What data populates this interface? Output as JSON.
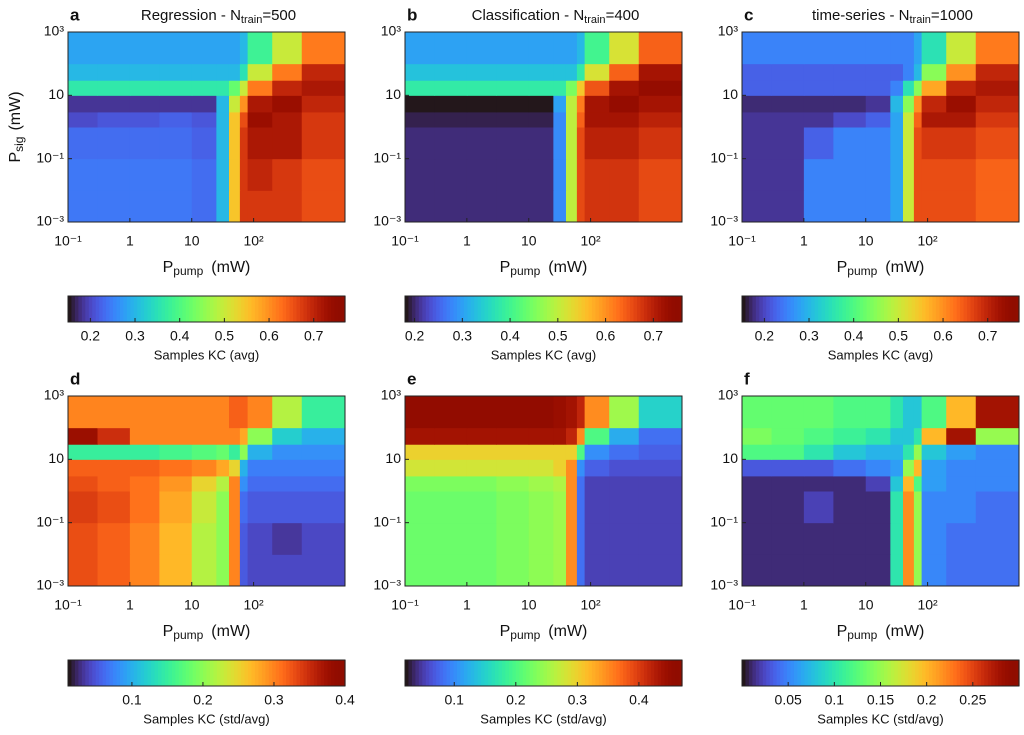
{
  "chart_data": [
    {
      "type": "heatmap",
      "letter": "a",
      "title": "Regression  -  N",
      "title_sub": "train",
      "title_end": "=500",
      "xlabel": "P",
      "xlabel_sub": "pump",
      "xlabel_unit": "(mW)",
      "ylabel": "P",
      "ylabel_sub": "sig",
      "ylabel_unit": "(mW)",
      "log_x": true,
      "log_y": true,
      "xlim": [
        0.1,
        3000
      ],
      "ylim": [
        0.001,
        1000
      ],
      "xticks": [
        {
          "value": 0.1,
          "label": "10⁻¹"
        },
        1,
        10,
        {
          "value": 100,
          "label": "10²"
        }
      ],
      "yticks": [
        {
          "value": 0.001,
          "label": "10⁻³"
        },
        {
          "value": 0.1,
          "label": "10⁻¹"
        },
        10,
        {
          "value": 1000,
          "label": "10³"
        }
      ],
      "x_edges": [
        0.1,
        0.3,
        1,
        3,
        10,
        25,
        40,
        60,
        80,
        200,
        600,
        3000
      ],
      "y_edges": [
        0.001,
        0.01,
        0.1,
        1,
        3,
        10,
        30,
        100,
        1000
      ],
      "z": [
        [
          0.24,
          0.24,
          0.24,
          0.24,
          0.23,
          0.3,
          0.55,
          0.68,
          0.68,
          0.68,
          0.66
        ],
        [
          0.24,
          0.24,
          0.24,
          0.24,
          0.23,
          0.3,
          0.55,
          0.68,
          0.7,
          0.68,
          0.66
        ],
        [
          0.23,
          0.23,
          0.23,
          0.23,
          0.22,
          0.3,
          0.55,
          0.68,
          0.72,
          0.72,
          0.68
        ],
        [
          0.2,
          0.21,
          0.21,
          0.22,
          0.21,
          0.3,
          0.55,
          0.66,
          0.74,
          0.72,
          0.68
        ],
        [
          0.18,
          0.18,
          0.18,
          0.18,
          0.18,
          0.3,
          0.5,
          0.6,
          0.72,
          0.74,
          0.7
        ],
        [
          0.36,
          0.36,
          0.36,
          0.36,
          0.36,
          0.36,
          0.42,
          0.5,
          0.62,
          0.7,
          0.72
        ],
        [
          0.3,
          0.3,
          0.3,
          0.3,
          0.3,
          0.3,
          0.3,
          0.35,
          0.5,
          0.62,
          0.7
        ],
        [
          0.28,
          0.28,
          0.28,
          0.28,
          0.28,
          0.28,
          0.28,
          0.3,
          0.38,
          0.5,
          0.62
        ]
      ],
      "colormap": "turbo",
      "colorbar": {
        "label": "Samples KC (avg)",
        "lim": [
          0.15,
          0.77
        ],
        "ticks": [
          0.2,
          0.3,
          0.4,
          0.5,
          0.6,
          0.7
        ]
      }
    },
    {
      "type": "heatmap",
      "letter": "b",
      "title": "Classification  -  N",
      "title_sub": "train",
      "title_end": "=400",
      "xlabel": "P",
      "xlabel_sub": "pump",
      "xlabel_unit": "(mW)",
      "log_x": true,
      "log_y": true,
      "xlim": [
        0.1,
        3000
      ],
      "ylim": [
        0.001,
        1000
      ],
      "xticks": [
        {
          "value": 0.1,
          "label": "10⁻¹"
        },
        1,
        10,
        {
          "value": 100,
          "label": "10²"
        }
      ],
      "yticks": [
        {
          "value": 0.001,
          "label": "10⁻³"
        },
        {
          "value": 0.1,
          "label": "10⁻¹"
        },
        10,
        {
          "value": 1000,
          "label": "10³"
        }
      ],
      "x_edges": [
        0.1,
        0.3,
        1,
        3,
        10,
        25,
        40,
        60,
        80,
        200,
        600,
        3000
      ],
      "y_edges": [
        0.001,
        0.01,
        0.1,
        1,
        3,
        10,
        30,
        100,
        1000
      ],
      "z": [
        [
          0.2,
          0.2,
          0.2,
          0.2,
          0.2,
          0.28,
          0.5,
          0.66,
          0.68,
          0.68,
          0.66
        ],
        [
          0.2,
          0.2,
          0.2,
          0.2,
          0.2,
          0.28,
          0.5,
          0.66,
          0.68,
          0.68,
          0.66
        ],
        [
          0.2,
          0.2,
          0.2,
          0.2,
          0.2,
          0.28,
          0.5,
          0.66,
          0.7,
          0.7,
          0.68
        ],
        [
          0.19,
          0.19,
          0.19,
          0.19,
          0.19,
          0.28,
          0.5,
          0.64,
          0.72,
          0.72,
          0.7
        ],
        [
          0.18,
          0.18,
          0.18,
          0.18,
          0.18,
          0.3,
          0.5,
          0.62,
          0.72,
          0.74,
          0.72
        ],
        [
          0.38,
          0.38,
          0.38,
          0.38,
          0.38,
          0.38,
          0.45,
          0.55,
          0.65,
          0.72,
          0.74
        ],
        [
          0.33,
          0.33,
          0.33,
          0.33,
          0.33,
          0.33,
          0.33,
          0.38,
          0.52,
          0.64,
          0.72
        ],
        [
          0.3,
          0.3,
          0.3,
          0.3,
          0.3,
          0.3,
          0.3,
          0.32,
          0.4,
          0.52,
          0.64
        ]
      ],
      "colormap": "turbo",
      "colorbar": {
        "label": "Samples KC (avg)",
        "lim": [
          0.18,
          0.76
        ],
        "ticks": [
          0.2,
          0.3,
          0.4,
          0.5,
          0.6,
          0.7
        ]
      }
    },
    {
      "type": "heatmap",
      "letter": "c",
      "title": "time-series  -  N",
      "title_sub": "train",
      "title_end": "=1000",
      "xlabel": "P",
      "xlabel_sub": "pump",
      "xlabel_unit": "(mW)",
      "log_x": true,
      "log_y": true,
      "xlim": [
        0.1,
        3000
      ],
      "ylim": [
        0.001,
        1000
      ],
      "xticks": [
        {
          "value": 0.1,
          "label": "10⁻¹"
        },
        1,
        10,
        {
          "value": 100,
          "label": "10²"
        }
      ],
      "yticks": [
        {
          "value": 0.001,
          "label": "10⁻³"
        },
        {
          "value": 0.1,
          "label": "10⁻¹"
        },
        10,
        {
          "value": 1000,
          "label": "10³"
        }
      ],
      "x_edges": [
        0.1,
        0.3,
        1,
        3,
        10,
        25,
        40,
        60,
        80,
        200,
        600,
        3000
      ],
      "y_edges": [
        0.001,
        0.01,
        0.1,
        1,
        3,
        10,
        30,
        100,
        1000
      ],
      "z": [
        [
          0.18,
          0.18,
          0.25,
          0.25,
          0.25,
          0.28,
          0.5,
          0.66,
          0.66,
          0.66,
          0.64
        ],
        [
          0.18,
          0.18,
          0.25,
          0.25,
          0.25,
          0.28,
          0.5,
          0.66,
          0.66,
          0.66,
          0.64
        ],
        [
          0.18,
          0.18,
          0.22,
          0.25,
          0.25,
          0.28,
          0.5,
          0.66,
          0.68,
          0.68,
          0.66
        ],
        [
          0.18,
          0.18,
          0.18,
          0.2,
          0.22,
          0.28,
          0.5,
          0.64,
          0.72,
          0.72,
          0.68
        ],
        [
          0.17,
          0.17,
          0.17,
          0.17,
          0.18,
          0.3,
          0.45,
          0.6,
          0.7,
          0.74,
          0.7
        ],
        [
          0.22,
          0.22,
          0.22,
          0.22,
          0.22,
          0.25,
          0.35,
          0.45,
          0.58,
          0.7,
          0.72
        ],
        [
          0.22,
          0.22,
          0.22,
          0.22,
          0.22,
          0.22,
          0.25,
          0.3,
          0.45,
          0.6,
          0.7
        ],
        [
          0.25,
          0.25,
          0.25,
          0.25,
          0.25,
          0.25,
          0.25,
          0.28,
          0.35,
          0.5,
          0.62
        ]
      ],
      "colormap": "turbo",
      "colorbar": {
        "label": "Samples KC (avg)",
        "lim": [
          0.15,
          0.77
        ],
        "ticks": [
          0.2,
          0.3,
          0.4,
          0.5,
          0.6,
          0.7
        ]
      }
    },
    {
      "type": "heatmap",
      "letter": "d",
      "xlabel": "P",
      "xlabel_sub": "pump",
      "xlabel_unit": "(mW)",
      "log_x": true,
      "log_y": true,
      "xlim": [
        0.1,
        3000
      ],
      "ylim": [
        0.001,
        1000
      ],
      "xticks": [
        {
          "value": 0.1,
          "label": "10⁻¹"
        },
        1,
        10,
        {
          "value": 100,
          "label": "10²"
        }
      ],
      "yticks": [
        {
          "value": 0.001,
          "label": "10⁻³"
        },
        {
          "value": 0.1,
          "label": "10⁻¹"
        },
        10,
        {
          "value": 1000,
          "label": "10³"
        }
      ],
      "x_edges": [
        0.1,
        0.3,
        1,
        3,
        10,
        25,
        40,
        60,
        80,
        200,
        600,
        3000
      ],
      "y_edges": [
        0.001,
        0.01,
        0.1,
        1,
        3,
        10,
        30,
        100,
        1000
      ],
      "z": [
        [
          0.33,
          0.32,
          0.3,
          0.27,
          0.22,
          0.2,
          0.3,
          0.05,
          0.04,
          0.04,
          0.04
        ],
        [
          0.33,
          0.32,
          0.3,
          0.27,
          0.22,
          0.2,
          0.3,
          0.05,
          0.04,
          0.03,
          0.04
        ],
        [
          0.34,
          0.33,
          0.31,
          0.28,
          0.23,
          0.2,
          0.3,
          0.06,
          0.05,
          0.05,
          0.05
        ],
        [
          0.33,
          0.32,
          0.31,
          0.29,
          0.25,
          0.22,
          0.3,
          0.08,
          0.06,
          0.06,
          0.06
        ],
        [
          0.32,
          0.32,
          0.32,
          0.31,
          0.3,
          0.28,
          0.25,
          0.1,
          0.07,
          0.07,
          0.07
        ],
        [
          0.15,
          0.15,
          0.15,
          0.16,
          0.17,
          0.18,
          0.15,
          0.2,
          0.1,
          0.08,
          0.08
        ],
        [
          0.38,
          0.35,
          0.3,
          0.3,
          0.3,
          0.3,
          0.3,
          0.28,
          0.2,
          0.12,
          0.1
        ],
        [
          0.3,
          0.3,
          0.3,
          0.3,
          0.3,
          0.3,
          0.32,
          0.32,
          0.3,
          0.22,
          0.15
        ]
      ],
      "colormap": "turbo",
      "colorbar": {
        "label": "Samples KC (std/avg)",
        "lim": [
          0.01,
          0.4
        ],
        "ticks": [
          0.1,
          0.2,
          0.3,
          0.4
        ]
      }
    },
    {
      "type": "heatmap",
      "letter": "e",
      "xlabel": "P",
      "xlabel_sub": "pump",
      "xlabel_unit": "(mW)",
      "log_x": true,
      "log_y": true,
      "xlim": [
        0.1,
        3000
      ],
      "ylim": [
        0.001,
        1000
      ],
      "xticks": [
        {
          "value": 0.1,
          "label": "10⁻¹"
        },
        1,
        10,
        {
          "value": 100,
          "label": "10²"
        }
      ],
      "yticks": [
        {
          "value": 0.001,
          "label": "10⁻³"
        },
        {
          "value": 0.1,
          "label": "10⁻¹"
        },
        10,
        {
          "value": 1000,
          "label": "10³"
        }
      ],
      "x_edges": [
        0.1,
        0.3,
        1,
        3,
        10,
        25,
        40,
        60,
        80,
        200,
        600,
        3000
      ],
      "y_edges": [
        0.001,
        0.01,
        0.1,
        1,
        3,
        10,
        30,
        100,
        1000
      ],
      "z": [
        [
          0.22,
          0.22,
          0.22,
          0.23,
          0.24,
          0.25,
          0.35,
          0.08,
          0.05,
          0.05,
          0.05
        ],
        [
          0.22,
          0.22,
          0.22,
          0.23,
          0.24,
          0.25,
          0.35,
          0.08,
          0.05,
          0.05,
          0.05
        ],
        [
          0.22,
          0.22,
          0.22,
          0.23,
          0.24,
          0.25,
          0.35,
          0.08,
          0.05,
          0.05,
          0.05
        ],
        [
          0.23,
          0.23,
          0.23,
          0.24,
          0.25,
          0.26,
          0.35,
          0.08,
          0.05,
          0.05,
          0.05
        ],
        [
          0.28,
          0.28,
          0.28,
          0.28,
          0.28,
          0.3,
          0.35,
          0.1,
          0.07,
          0.06,
          0.06
        ],
        [
          0.3,
          0.3,
          0.3,
          0.3,
          0.3,
          0.3,
          0.3,
          0.2,
          0.1,
          0.08,
          0.07
        ],
        [
          0.44,
          0.44,
          0.44,
          0.44,
          0.44,
          0.44,
          0.42,
          0.35,
          0.2,
          0.12,
          0.08
        ],
        [
          0.46,
          0.46,
          0.46,
          0.46,
          0.46,
          0.45,
          0.44,
          0.42,
          0.35,
          0.25,
          0.15
        ]
      ],
      "colormap": "turbo",
      "colorbar": {
        "label": "Samples KC (std/avg)",
        "lim": [
          0.02,
          0.47
        ],
        "ticks": [
          0.1,
          0.2,
          0.3,
          0.4
        ]
      }
    },
    {
      "type": "heatmap",
      "letter": "f",
      "xlabel": "P",
      "xlabel_sub": "pump",
      "xlabel_unit": "(mW)",
      "log_x": true,
      "log_y": true,
      "xlim": [
        0.1,
        3000
      ],
      "ylim": [
        0.001,
        1000
      ],
      "xticks": [
        {
          "value": 0.1,
          "label": "10⁻¹"
        },
        1,
        10,
        {
          "value": 100,
          "label": "10²"
        }
      ],
      "yticks": [
        {
          "value": 0.001,
          "label": "10⁻³"
        },
        {
          "value": 0.1,
          "label": "10⁻¹"
        },
        10,
        {
          "value": 1000,
          "label": "10³"
        }
      ],
      "x_edges": [
        0.1,
        0.3,
        1,
        3,
        10,
        25,
        40,
        60,
        80,
        200,
        600,
        3000
      ],
      "y_edges": [
        0.001,
        0.01,
        0.1,
        1,
        3,
        10,
        30,
        100,
        1000
      ],
      "z": [
        [
          0.01,
          0.01,
          0.01,
          0.01,
          0.01,
          0.1,
          0.22,
          0.15,
          0.05,
          0.04,
          0.04
        ],
        [
          0.01,
          0.01,
          0.01,
          0.01,
          0.01,
          0.1,
          0.22,
          0.15,
          0.05,
          0.04,
          0.04
        ],
        [
          0.01,
          0.01,
          0.02,
          0.01,
          0.01,
          0.1,
          0.22,
          0.15,
          0.05,
          0.05,
          0.04
        ],
        [
          0.01,
          0.01,
          0.01,
          0.01,
          0.02,
          0.08,
          0.2,
          0.12,
          0.06,
          0.05,
          0.05
        ],
        [
          0.03,
          0.03,
          0.03,
          0.04,
          0.05,
          0.06,
          0.15,
          0.2,
          0.06,
          0.05,
          0.05
        ],
        [
          0.12,
          0.12,
          0.1,
          0.08,
          0.07,
          0.07,
          0.1,
          0.15,
          0.08,
          0.06,
          0.05
        ],
        [
          0.14,
          0.13,
          0.12,
          0.11,
          0.1,
          0.08,
          0.08,
          0.1,
          0.2,
          0.28,
          0.15
        ],
        [
          0.13,
          0.13,
          0.13,
          0.12,
          0.12,
          0.1,
          0.08,
          0.08,
          0.12,
          0.2,
          0.28
        ]
      ],
      "colormap": "turbo",
      "colorbar": {
        "label": "Samples KC (std/avg)",
        "lim": [
          0,
          0.3
        ],
        "ticks": [
          0.05,
          0.1,
          0.15,
          0.2,
          0.25
        ]
      }
    }
  ]
}
